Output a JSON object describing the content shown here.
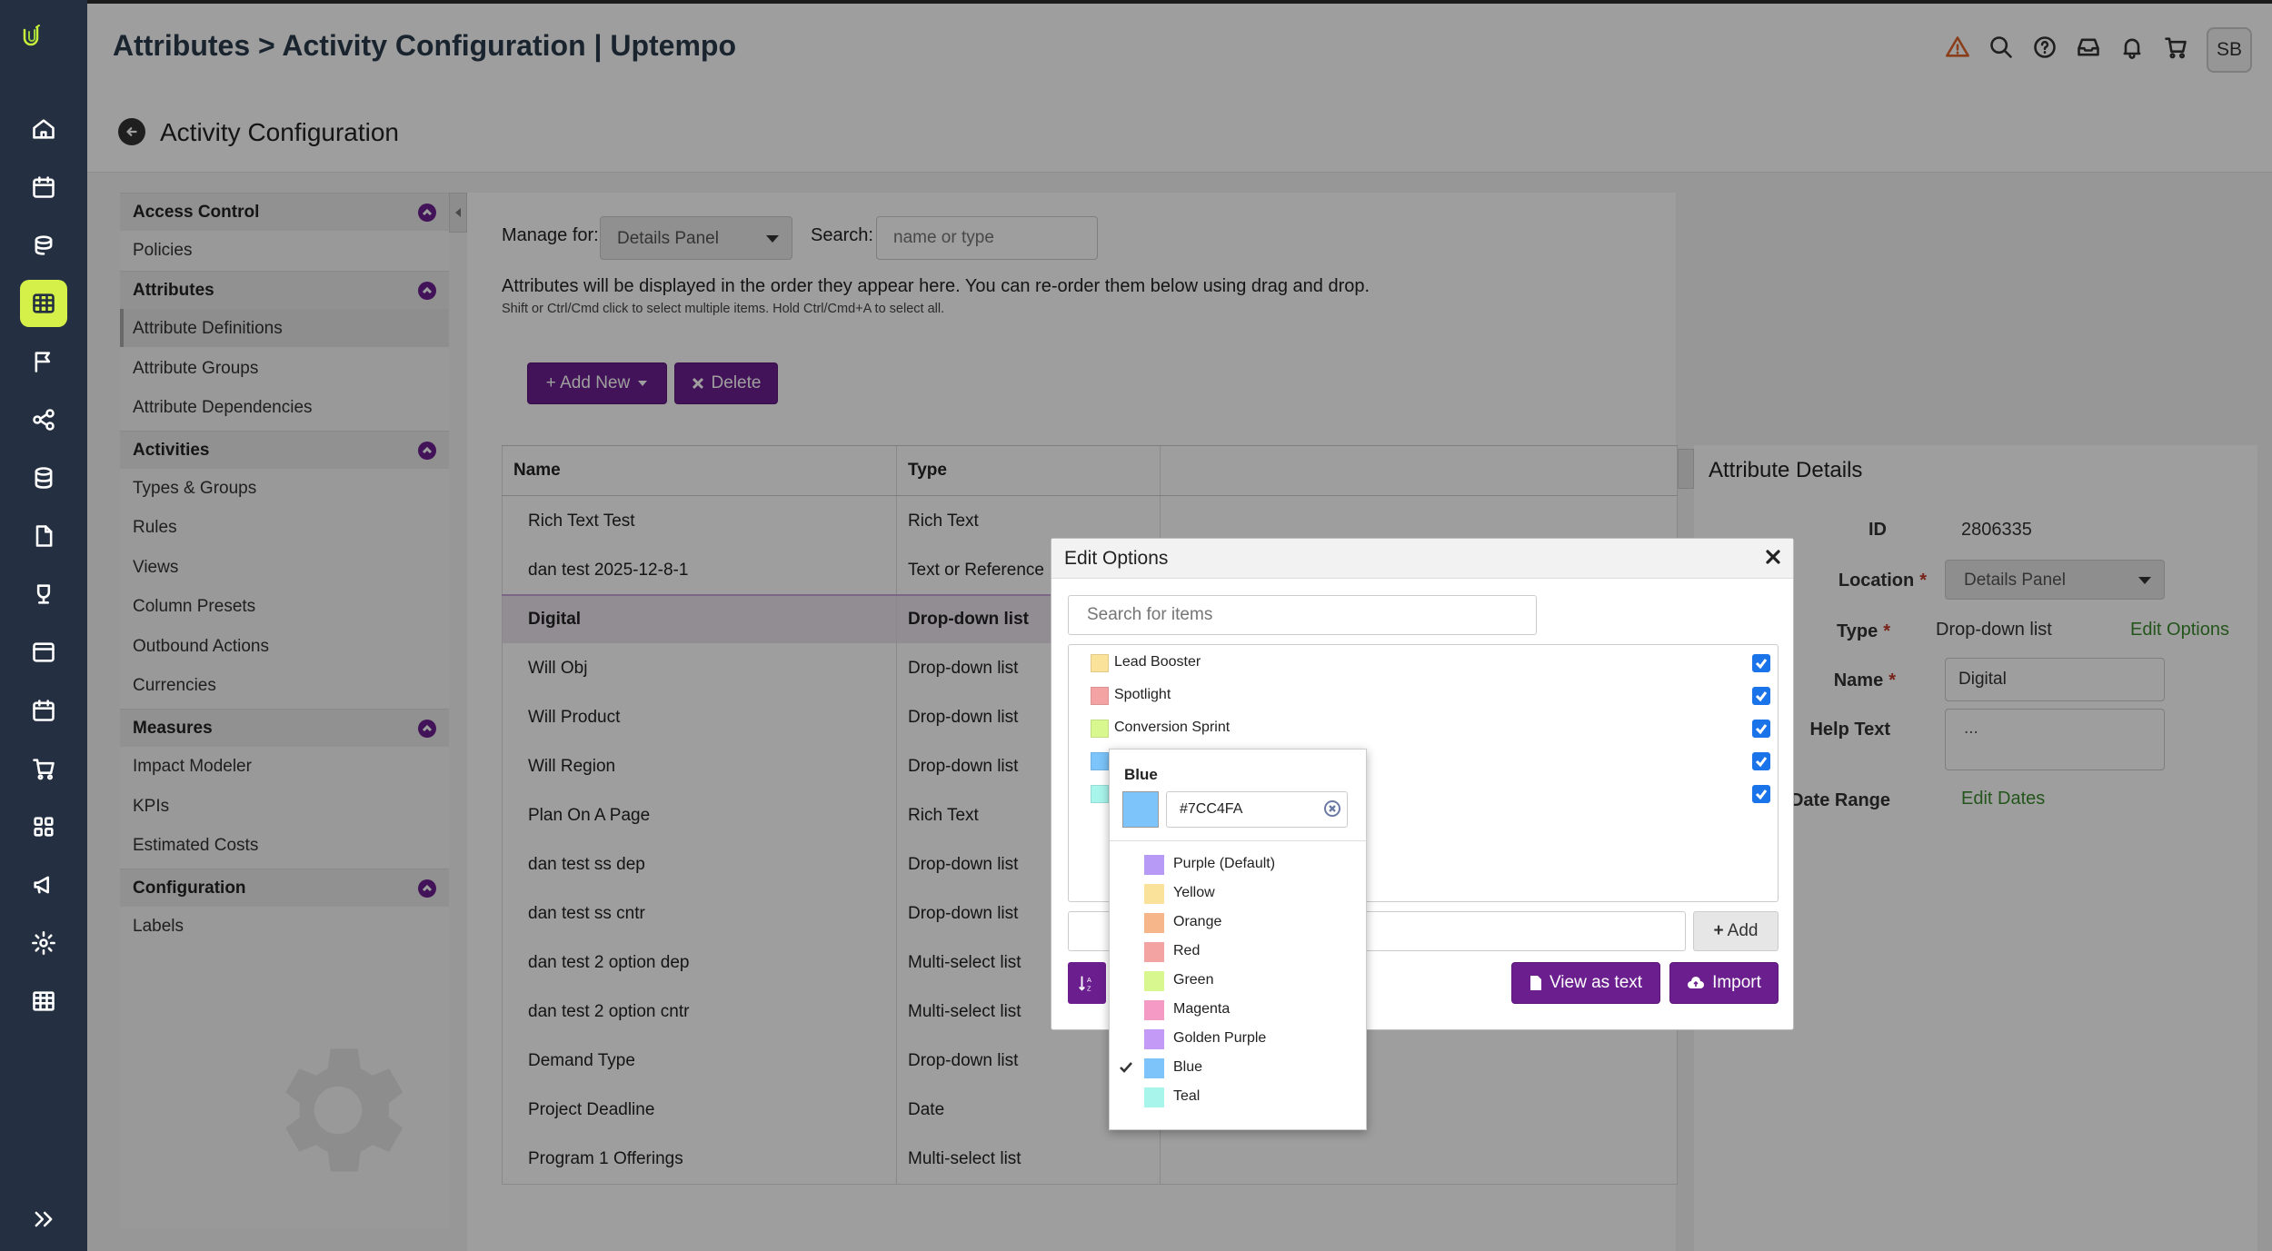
{
  "app": {
    "page_title": "Attributes > Activity Configuration | Uptempo",
    "avatar_initials": "SB"
  },
  "subheader": {
    "title": "Activity Configuration"
  },
  "sidebar": {
    "groups": [
      {
        "label": "Access Control",
        "items": [
          "Policies"
        ]
      },
      {
        "label": "Attributes",
        "items": [
          "Attribute Definitions",
          "Attribute Groups",
          "Attribute Dependencies"
        ]
      },
      {
        "label": "Activities",
        "items": [
          "Types & Groups",
          "Rules",
          "Views",
          "Column Presets",
          "Outbound Actions",
          "Currencies"
        ]
      },
      {
        "label": "Measures",
        "items": [
          "Impact Modeler",
          "KPIs",
          "Estimated Costs"
        ]
      },
      {
        "label": "Configuration",
        "items": [
          "Labels"
        ]
      }
    ],
    "selected_item": "Attribute Definitions"
  },
  "main": {
    "manage_label": "Manage for:",
    "manage_value": "Details Panel",
    "search_label": "Search:",
    "search_placeholder": "name or type",
    "info_line1": "Attributes will be displayed in the order they appear here. You can re-order them below using drag and drop.",
    "info_line2": "Shift or Ctrl/Cmd click to select multiple items. Hold Ctrl/Cmd+A to select all.",
    "add_new_label": "+ Add New",
    "delete_label": "Delete"
  },
  "table": {
    "headers": [
      "Name",
      "Type"
    ],
    "rows": [
      {
        "name": "Rich Text Test",
        "type": "Rich Text"
      },
      {
        "name": "dan test 2025-12-8-1",
        "type": "Text or Reference"
      },
      {
        "name": "Digital",
        "type": "Drop-down list"
      },
      {
        "name": "Will Obj",
        "type": "Drop-down list"
      },
      {
        "name": "Will Product",
        "type": "Drop-down list"
      },
      {
        "name": "Will Region",
        "type": "Drop-down list"
      },
      {
        "name": "Plan On A Page",
        "type": "Rich Text"
      },
      {
        "name": "dan test ss dep",
        "type": "Drop-down list"
      },
      {
        "name": "dan test ss cntr",
        "type": "Drop-down list"
      },
      {
        "name": "dan test 2 option dep",
        "type": "Multi-select list"
      },
      {
        "name": "dan test 2 option cntr",
        "type": "Multi-select list"
      },
      {
        "name": "Demand Type",
        "type": "Drop-down list"
      },
      {
        "name": "Project Deadline",
        "type": "Date"
      },
      {
        "name": "Program 1 Offerings",
        "type": "Multi-select list"
      }
    ],
    "selected_row": "Digital"
  },
  "details": {
    "title": "Attribute Details",
    "id_label": "ID",
    "id_value": "2806335",
    "location_label": "Location",
    "location_value": "Details Panel",
    "type_label": "Type",
    "type_value": "Drop-down list",
    "edit_options_link": "Edit Options",
    "name_label": "Name",
    "name_value": "Digital",
    "help_label": "Help Text",
    "help_value": "...",
    "date_range_label": "Date Range",
    "edit_dates_link": "Edit Dates",
    "required_mark": "*"
  },
  "dialog": {
    "title": "Edit Options",
    "search_placeholder": "Search for items",
    "options": [
      {
        "label": "Lead Booster",
        "color": "#FAE29A",
        "checked": true
      },
      {
        "label": "Spotlight",
        "color": "#F4A3A3",
        "checked": true
      },
      {
        "label": "Conversion Sprint",
        "color": "#D9F78F",
        "checked": true
      },
      {
        "label": "",
        "color": "#7CC4FA",
        "checked": true
      },
      {
        "label": "",
        "color": "#A8F5EC",
        "checked": true
      }
    ],
    "add_label": "Add",
    "view_as_text_label": "View as text",
    "import_label": "Import"
  },
  "color_picker": {
    "current_name": "Blue",
    "current_hex": "#7CC4FA",
    "colors": [
      {
        "name": "Purple (Default)",
        "hex": "#B79AF5",
        "selected": false
      },
      {
        "name": "Yellow",
        "hex": "#FAE29A",
        "selected": false
      },
      {
        "name": "Orange",
        "hex": "#F7B58A",
        "selected": false
      },
      {
        "name": "Red",
        "hex": "#F4A3A3",
        "selected": false
      },
      {
        "name": "Green",
        "hex": "#D9F78F",
        "selected": false
      },
      {
        "name": "Magenta",
        "hex": "#F59AC4",
        "selected": false
      },
      {
        "name": "Golden Purple",
        "hex": "#C39AF5",
        "selected": false
      },
      {
        "name": "Blue",
        "hex": "#7CC4FA",
        "selected": true
      },
      {
        "name": "Teal",
        "hex": "#A8F5EC",
        "selected": false
      }
    ]
  },
  "theme": {
    "brand_purple": "#6B1F8F",
    "rail_bg": "#243041",
    "rail_active": "#D6F04A",
    "link_green": "#3B8A2E",
    "checkbox_blue": "#1A73E8"
  }
}
